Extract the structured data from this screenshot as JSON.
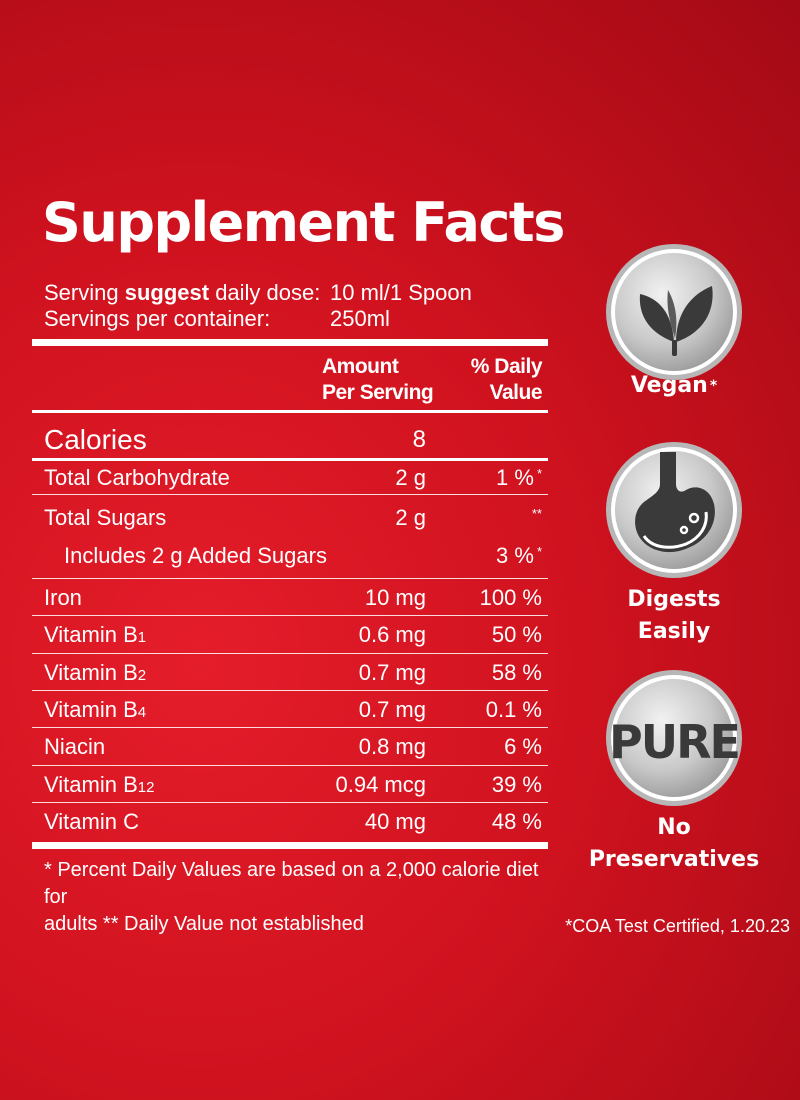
{
  "title": "Supplement Facts",
  "serving": {
    "dose_label_a": "Serving ",
    "dose_label_b": "suggest",
    "dose_label_c": " daily dose:",
    "dose_value": "10 ml/1 Spoon",
    "per_container_label": "Servings per container:",
    "per_container_value": "250ml"
  },
  "header": {
    "amount_line1": "Amount",
    "amount_line2": "Per Serving",
    "dv_line1": "% Daily",
    "dv_line2": "Value"
  },
  "calories": {
    "label": "Calories",
    "value": "8"
  },
  "rows": [
    {
      "name": "Total Carbohydrate",
      "amount": "2 g",
      "dv": "1 %",
      "mark": "*"
    },
    {
      "name": "Total Sugars",
      "amount": "2 g",
      "dv": "",
      "mark": "**"
    },
    {
      "name": "Includes 2 g Added Sugars",
      "amount": "",
      "dv": "3 %",
      "mark": "*"
    },
    {
      "name": "Iron",
      "amount": "10 mg",
      "dv": "100 %"
    },
    {
      "name": "Vitamin B",
      "sub": "1",
      "amount": "0.6 mg",
      "dv": "50 %"
    },
    {
      "name": "Vitamin B",
      "sub": "2",
      "amount": "0.7 mg",
      "dv": "58 %"
    },
    {
      "name": "Vitamin B",
      "sub": "4",
      "amount": "0.7 mg",
      "dv": "0.1 %"
    },
    {
      "name": "Niacin",
      "amount": "0.8 mg",
      "dv": "6 %"
    },
    {
      "name": "Vitamin B",
      "sub": "12",
      "amount": "0.94 mcg",
      "dv": "39 %"
    },
    {
      "name": "Vitamin C",
      "amount": "40 mg",
      "dv": "48 %"
    }
  ],
  "footnote_line1": "* Percent Daily Values are based on a 2,000 calorie diet for",
  "footnote_line2": "adults  ** Daily Value not established",
  "badges": {
    "vegan": {
      "label": "Vegan",
      "mark": "*",
      "icon": "leaf-icon"
    },
    "digest": {
      "line1": "Digests",
      "line2": "Easily",
      "icon": "stomach-icon"
    },
    "pure": {
      "icon_text": "PURE",
      "line1": "No",
      "line2": "Preservatives",
      "icon": "pure-icon"
    }
  },
  "coa_note": "*COA Test Certified, 1.20.23",
  "colors": {
    "background": "#d0121f",
    "badge_silver": "#c9c9c9",
    "icon_dark": "#3a3a3a"
  }
}
